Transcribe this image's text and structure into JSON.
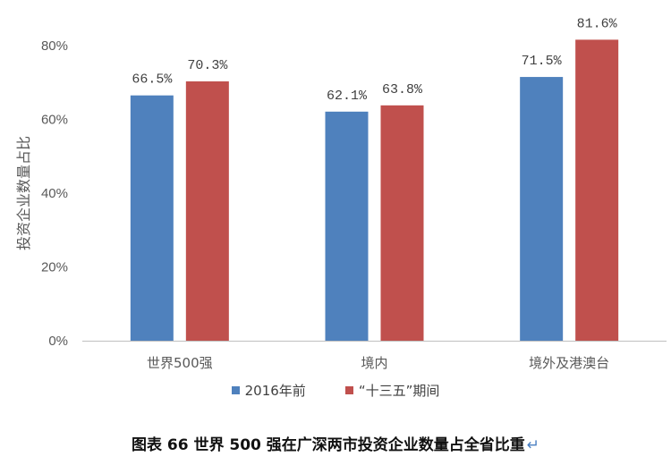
{
  "chart_data": {
    "type": "bar",
    "ylabel": "投资企业数量占比",
    "ylim": [
      0,
      80
    ],
    "yticks": [
      "0%",
      "20%",
      "40%",
      "60%",
      "80%"
    ],
    "ytick_values": [
      0,
      20,
      40,
      60,
      80
    ],
    "categories": [
      "世界500强",
      "境内",
      "境外及港澳台"
    ],
    "series": [
      {
        "name": "2016年前",
        "values": [
          66.5,
          62.1,
          71.5
        ],
        "labels": [
          "66.5%",
          "62.1%",
          "71.5%"
        ],
        "color": "#4f81bd"
      },
      {
        "name": "“十三五”期间",
        "values": [
          70.3,
          63.8,
          81.6
        ],
        "labels": [
          "70.3%",
          "63.8%",
          "81.6%"
        ],
        "color": "#c0504d"
      }
    ],
    "grid": false,
    "legend_position": "bottom"
  },
  "caption": "图表 66 世界 500 强在广深两市投资企业数量占全省比重",
  "caption_mark": "↵"
}
